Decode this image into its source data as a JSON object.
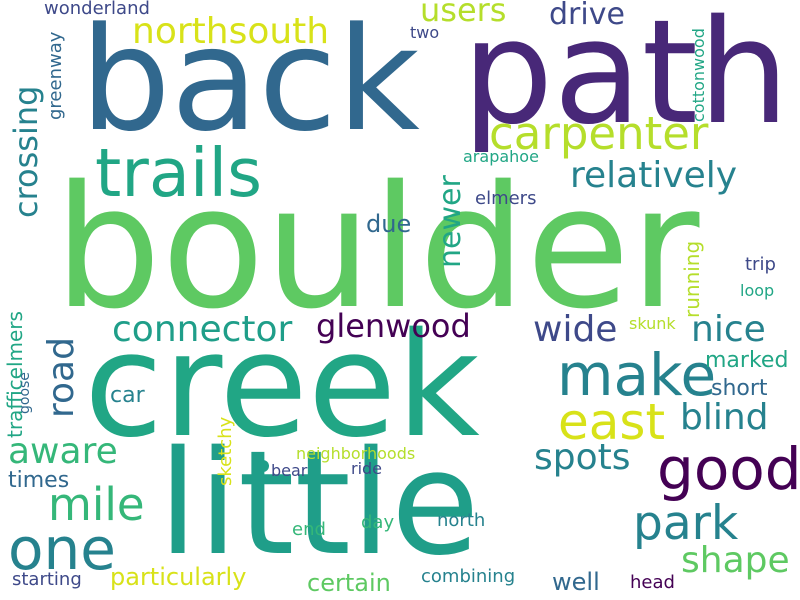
{
  "words": {
    "boulder": "boulder",
    "creek": "creek",
    "little": "little",
    "back": "back",
    "path": "path",
    "trails": "trails",
    "carpenter": "carpenter",
    "northsouth": "northsouth",
    "make": "make",
    "good": "good",
    "one": "one",
    "park": "park",
    "mile": "mile",
    "east": "east",
    "connector": "connector",
    "glenwood": "glenwood",
    "wide": "wide",
    "nice": "nice",
    "relatively": "relatively",
    "crossing": "crossing",
    "road": "road",
    "blind": "blind",
    "spots": "spots",
    "shape": "shape",
    "aware": "aware",
    "newer": "newer",
    "drive": "drive",
    "users": "users",
    "particularly": "particularly",
    "certain": "certain",
    "well": "well",
    "trafficelmers": "trafficelmers",
    "running": "running",
    "wonderland": "wonderland",
    "greenway": "greenway",
    "two": "two",
    "cottonwood": "cottonwood",
    "arapahoe": "arapahoe",
    "elmers": "elmers",
    "due": "due",
    "trip": "trip",
    "loop": "loop",
    "skunk": "skunk",
    "marked": "marked",
    "short": "short",
    "car": "car",
    "sketchy": "sketchy",
    "goose": "goose",
    "times": "times",
    "neighborhoods": "neighborhoods",
    "bear": "bear",
    "ride": "ride",
    "end": "end",
    "day": "day",
    "north": "north",
    "combining": "combining",
    "head": "head",
    "starting": "starting"
  },
  "colors": {
    "dark_purple": "#440154",
    "indigo": "#482878",
    "blue_purple": "#3e4989",
    "steel_blue": "#31688e",
    "teal_blue": "#26828e",
    "teal": "#1f9e89",
    "green_teal": "#21a685",
    "green": "#35b779",
    "light_green": "#5ec962",
    "yellow_green": "#b5de2b",
    "yellow": "#d8e219"
  }
}
